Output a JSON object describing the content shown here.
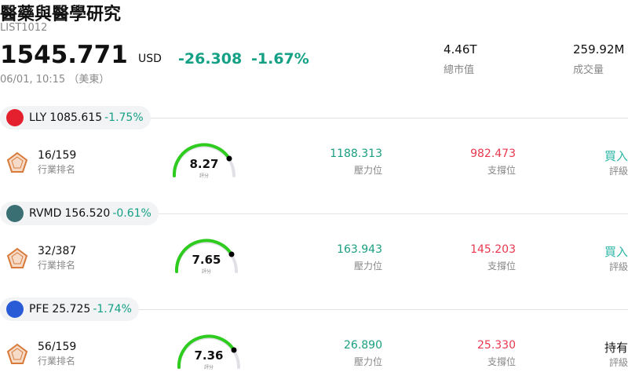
{
  "header": {
    "title": "醫藥與醫學研究",
    "code": "LIST1012",
    "price": "1545.771",
    "currency": "USD",
    "change": "-26.308",
    "change_pct": "-1.67%",
    "time": "06/01, 10:15 （美東）"
  },
  "stats": [
    {
      "value": "4.46T",
      "label": "總市值"
    },
    {
      "value": "259.92M",
      "label": "成交量"
    }
  ],
  "stocks": [
    {
      "symbol": "LLY",
      "price": "1085.615",
      "change_pct": "-1.75%",
      "icon_color": "#e4202f",
      "rank": "16/159",
      "rank_label": "行業排名",
      "score": "8.27",
      "score_label": "評分",
      "resistance": "1188.313",
      "resistance_label": "壓力位",
      "support": "982.473",
      "support_label": "支撐位",
      "rating": "買入",
      "rating_label": "評級",
      "rating_color": "#2bb5a5"
    },
    {
      "symbol": "RVMD",
      "price": "156.520",
      "change_pct": "-0.61%",
      "icon_color": "#3a6f73",
      "rank": "32/387",
      "rank_label": "行業排名",
      "score": "7.65",
      "score_label": "評分",
      "resistance": "163.943",
      "resistance_label": "壓力位",
      "support": "145.203",
      "support_label": "支撐位",
      "rating": "買入",
      "rating_label": "評級",
      "rating_color": "#2bb5a5"
    },
    {
      "symbol": "PFE",
      "price": "25.725",
      "change_pct": "-1.74%",
      "icon_color": "#2a5bd7",
      "rank": "56/159",
      "rank_label": "行業排名",
      "score": "7.36",
      "score_label": "評分",
      "resistance": "26.890",
      "resistance_label": "壓力位",
      "support": "25.330",
      "support_label": "支撐位",
      "rating": "持有",
      "rating_label": "評級",
      "rating_color": "#111111"
    }
  ]
}
